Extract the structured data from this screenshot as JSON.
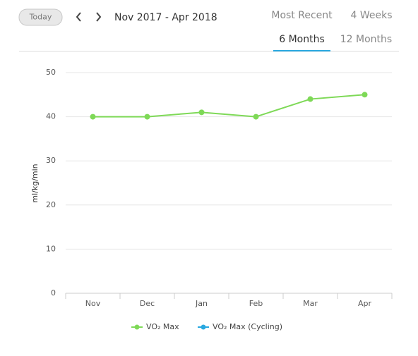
{
  "toolbar": {
    "today": "Today",
    "range": "Nov 2017 - Apr 2018",
    "tabs": [
      "Most Recent",
      "4 Weeks",
      "6 Months",
      "12 Months"
    ],
    "active_tab": 2
  },
  "chart_data": {
    "type": "line",
    "ylabel": "ml/kg/min",
    "categories": [
      "Nov",
      "Dec",
      "Jan",
      "Feb",
      "Mar",
      "Apr"
    ],
    "series": [
      {
        "name": "VO₂ Max",
        "color": "#7ed957",
        "values": [
          40,
          40,
          41,
          40,
          44,
          45
        ]
      },
      {
        "name": "VO₂ Max (Cycling)",
        "color": "#29a8e0",
        "values": [
          null,
          null,
          null,
          null,
          null,
          null
        ]
      }
    ],
    "ylim": [
      0,
      50
    ],
    "yticks": [
      0,
      10,
      20,
      30,
      40,
      50
    ],
    "grid": true
  }
}
